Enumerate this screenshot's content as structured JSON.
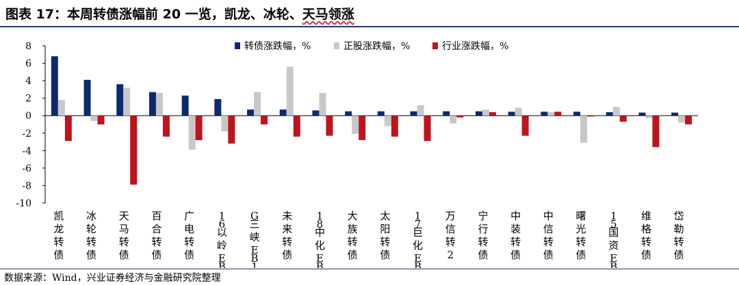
{
  "header": {
    "title_prefix": "图表 17：本周转债涨幅前 20 一览，凯龙、冰轮、",
    "title_wavy": "天马领涨"
  },
  "footer": {
    "source": "数据来源：Wind，兴业证券经济与金融研究院整理"
  },
  "colors": {
    "series1": "#0e2a6e",
    "series2": "#c8c8c8",
    "series3": "#c0141c",
    "rule": "#1f3a6b"
  },
  "chart_data": {
    "type": "bar",
    "ylim": [
      -10,
      8
    ],
    "yticks": [
      -10,
      -8,
      -6,
      -4,
      -2,
      0,
      2,
      4,
      6,
      8
    ],
    "legend_position": "top-center",
    "categories": [
      "凯龙转债",
      "冰轮转债",
      "天马转债",
      "百合转债",
      "广电转债",
      "16以岭EB",
      "G三峡EB1",
      "未来转债",
      "18中化EB",
      "大族转债",
      "太阳转债",
      "17巨化EB",
      "万信转2",
      "宁行转债",
      "中装转债",
      "中信转债",
      "曙光转债",
      "15国资EB",
      "维格转债",
      "岱勒转债"
    ],
    "series": [
      {
        "name": "转债涨跌幅，%",
        "values": [
          6.8,
          4.1,
          3.6,
          2.7,
          2.3,
          1.9,
          0.7,
          0.7,
          0.6,
          0.5,
          0.5,
          0.5,
          0.5,
          0.5,
          0.45,
          0.45,
          0.45,
          0.4,
          0.35,
          0.35
        ]
      },
      {
        "name": "正股涨跌幅，%",
        "values": [
          1.8,
          -0.6,
          3.2,
          2.6,
          -3.9,
          -1.8,
          2.7,
          5.6,
          2.6,
          -2.1,
          -1.2,
          1.2,
          -0.9,
          0.7,
          0.9,
          0.4,
          -3.1,
          1.0,
          -0.3,
          -0.8
        ]
      },
      {
        "name": "行业涨跌幅，%",
        "values": [
          -2.9,
          -1.0,
          -7.9,
          -2.4,
          -2.8,
          -3.2,
          -1.0,
          -2.4,
          -2.3,
          -2.8,
          -2.4,
          -2.9,
          -0.2,
          0.4,
          -2.3,
          0.45,
          -0.1,
          -0.7,
          -3.6,
          -1.0
        ]
      }
    ]
  }
}
